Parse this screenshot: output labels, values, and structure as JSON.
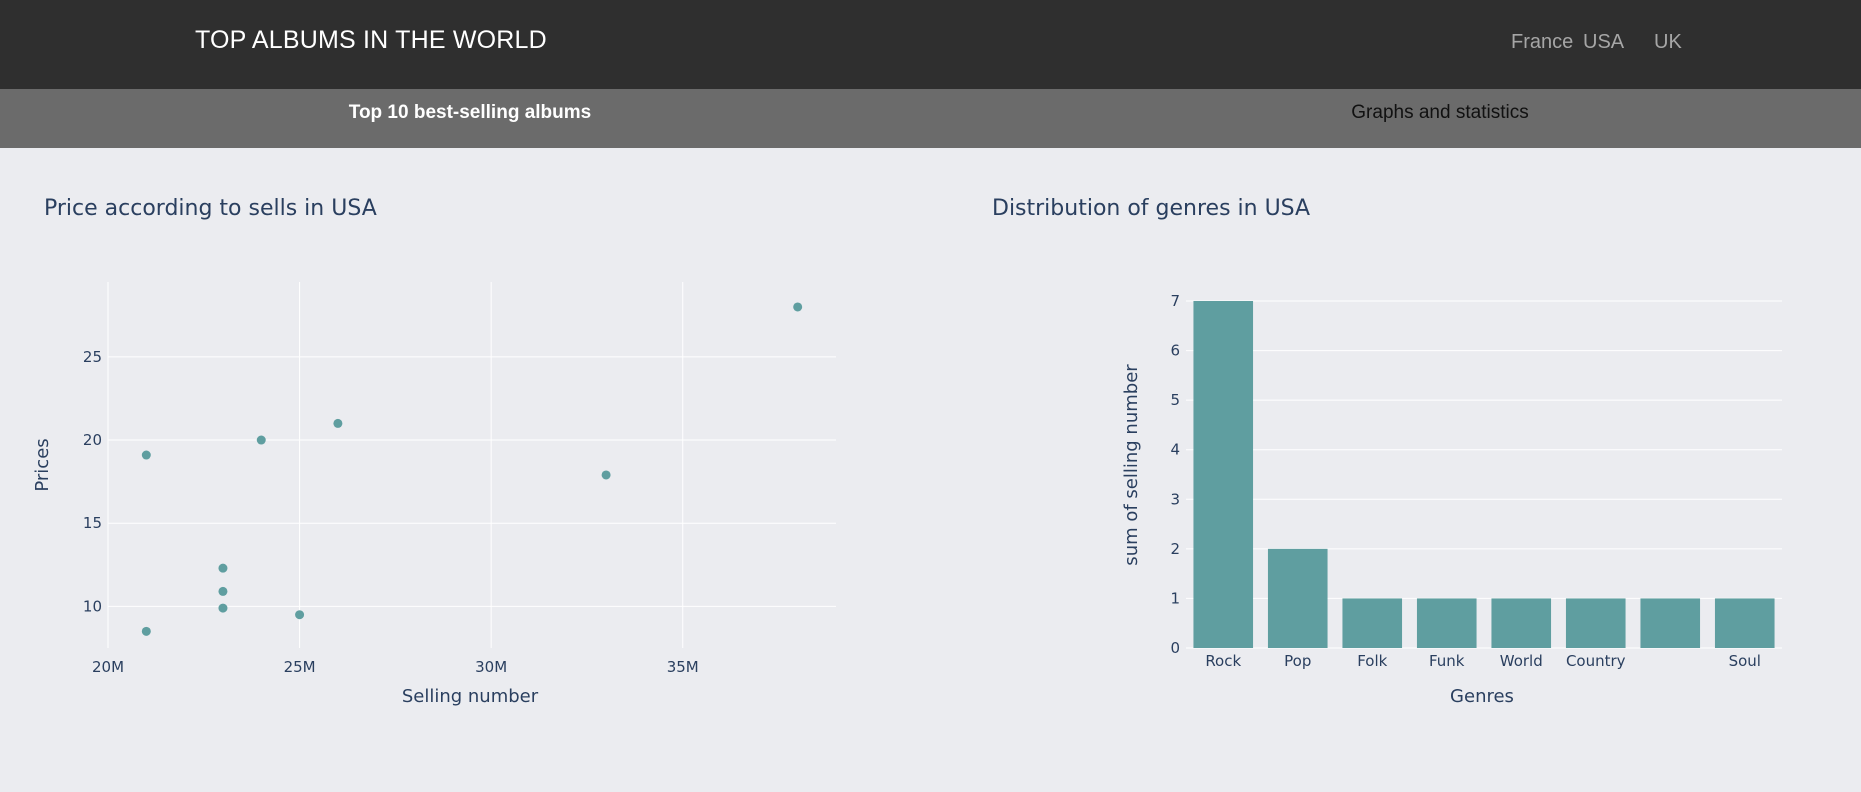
{
  "header": {
    "title": "TOP ALBUMS IN THE WORLD",
    "nav": [
      "France",
      "USA",
      "UK"
    ]
  },
  "tabs": [
    {
      "label": "Top 10 best-selling albums",
      "active": true
    },
    {
      "label": "Graphs and statistics",
      "active": false
    }
  ],
  "colors": {
    "marker": "#5f9ea0",
    "axis_text": "#2a3f5f",
    "grid": "#ffffff"
  },
  "chart_data": [
    {
      "type": "scatter",
      "title": "Price according to sells in USA",
      "xlabel": "Selling number",
      "ylabel": "Prices",
      "xlim": [
        20000000,
        39000000
      ],
      "ylim": [
        7.5,
        29.5
      ],
      "xticks": [
        20000000,
        25000000,
        30000000,
        35000000
      ],
      "xtick_labels": [
        "20M",
        "25M",
        "30M",
        "35M"
      ],
      "yticks": [
        10,
        15,
        20,
        25
      ],
      "yticks_labels": [
        "10",
        "15",
        "20",
        "25"
      ],
      "points": [
        {
          "x": 21000000,
          "y": 19.1
        },
        {
          "x": 21000000,
          "y": 8.5
        },
        {
          "x": 23000000,
          "y": 12.3
        },
        {
          "x": 23000000,
          "y": 10.9
        },
        {
          "x": 23000000,
          "y": 9.9
        },
        {
          "x": 24000000,
          "y": 20.0
        },
        {
          "x": 25000000,
          "y": 9.5
        },
        {
          "x": 26000000,
          "y": 21.0
        },
        {
          "x": 33000000,
          "y": 17.9
        },
        {
          "x": 38000000,
          "y": 28.0
        }
      ],
      "grid": true
    },
    {
      "type": "bar",
      "title": "Distribution of genres in USA",
      "xlabel": "Genres",
      "ylabel": "sum of selling number",
      "categories": [
        "Rock",
        "Pop",
        "Folk",
        "Funk",
        "World",
        "Country",
        "",
        "Soul"
      ],
      "values": [
        7,
        2,
        1,
        1,
        1,
        1,
        1,
        1
      ],
      "ylim": [
        0,
        7
      ],
      "yticks": [
        0,
        1,
        2,
        3,
        4,
        5,
        6,
        7
      ],
      "grid": true
    }
  ]
}
